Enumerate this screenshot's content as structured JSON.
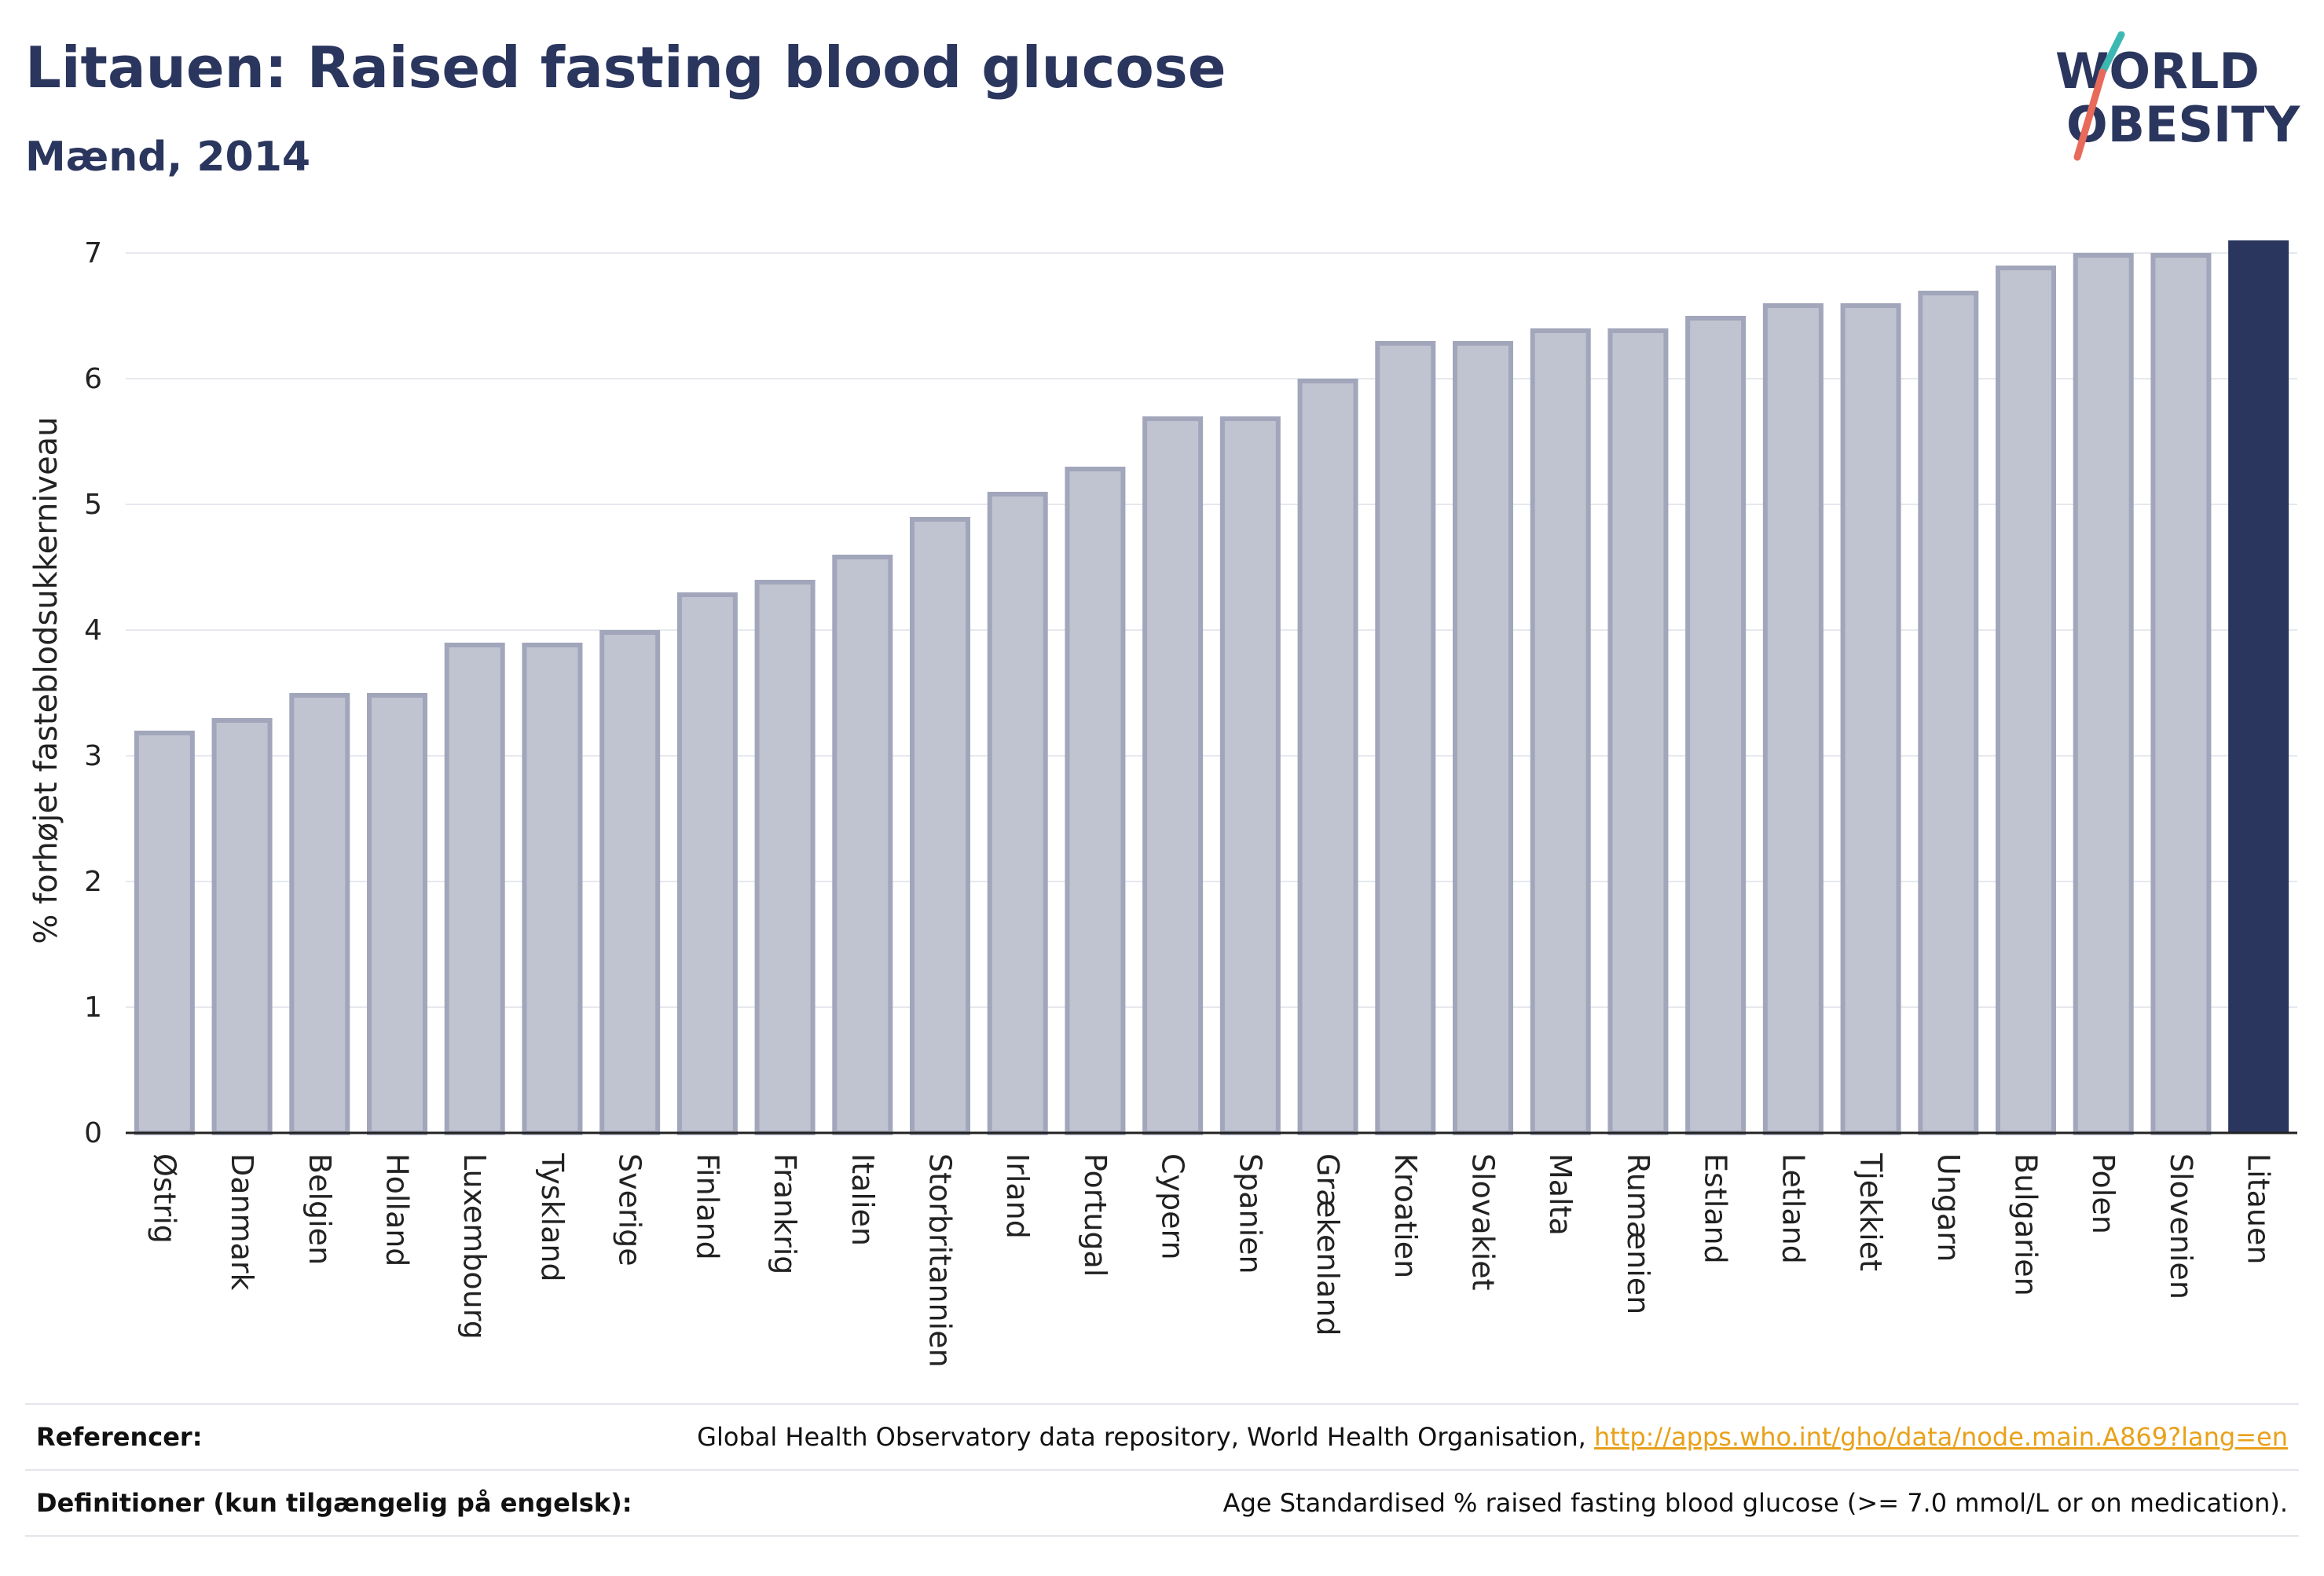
{
  "header": {
    "title": "Litauen: Raised fasting blood glucose",
    "subtitle": "Mænd, 2014"
  },
  "logo": {
    "line1": "WORLD",
    "line2": "OBESITY"
  },
  "colors": {
    "bar_fill": "#c0c3d0",
    "bar_stroke": "#a1a6bb",
    "highlight": "#2b365e",
    "grid": "#e6e8ee",
    "text": "#2b365e",
    "logo_teal": "#3cb8b2",
    "logo_coral": "#e86a5a"
  },
  "chart_data": {
    "type": "bar",
    "ylabel": "% forhøjet fasteblodsukkerniveau",
    "ylim": [
      0,
      7.2
    ],
    "yticks": [
      0,
      1,
      2,
      3,
      4,
      5,
      6,
      7
    ],
    "grid": true,
    "highlight": "Litauen",
    "categories": [
      "Østrig",
      "Danmark",
      "Belgien",
      "Holland",
      "Luxembourg",
      "Tyskland",
      "Sverige",
      "Finland",
      "Frankrig",
      "Italien",
      "Storbritannien",
      "Irland",
      "Portugal",
      "Cypern",
      "Spanien",
      "Grækenland",
      "Kroatien",
      "Slovakiet",
      "Malta",
      "Rumænien",
      "Estland",
      "Letland",
      "Tjekkiet",
      "Ungarn",
      "Bulgarien",
      "Polen",
      "Slovenien",
      "Litauen"
    ],
    "values": [
      3.2,
      3.3,
      3.5,
      3.5,
      3.9,
      3.9,
      4.0,
      4.3,
      4.4,
      4.6,
      4.9,
      5.1,
      5.3,
      5.7,
      5.7,
      6.0,
      6.3,
      6.3,
      6.4,
      6.4,
      6.5,
      6.6,
      6.6,
      6.7,
      6.9,
      7.0,
      7.0,
      7.1
    ]
  },
  "footer": {
    "references_label": "Referencer:",
    "references_text": "Global Health Observatory data repository, World Health Organisation, ",
    "references_link": "http://apps.who.int/gho/data/node.main.A869?lang=en",
    "definitions_label": "Definitioner (kun tilgængelig på engelsk):",
    "definitions_text": "Age Standardised % raised fasting blood glucose (>= 7.0 mmol/L or on medication)."
  }
}
